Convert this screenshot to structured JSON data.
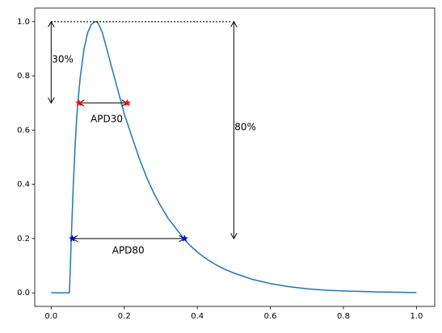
{
  "chart_data": {
    "type": "line",
    "title": "",
    "xlabel": "",
    "ylabel": "",
    "xlim": [
      -0.045,
      1.05
    ],
    "ylim": [
      -0.05,
      1.05
    ],
    "xticks": [
      0.0,
      0.2,
      0.4,
      0.6,
      0.8,
      1.0
    ],
    "xtick_labels": [
      "0.0",
      "0.2",
      "0.4",
      "0.6",
      "0.8",
      "1.0"
    ],
    "yticks": [
      0.0,
      0.2,
      0.4,
      0.6,
      0.8,
      1.0
    ],
    "ytick_labels": [
      "0.0",
      "0.2",
      "0.4",
      "0.6",
      "0.8",
      "1.0"
    ],
    "grid": false,
    "series": [
      {
        "color": "#1f77b4",
        "x": [
          0.0,
          0.05,
          0.055,
          0.06,
          0.065,
          0.07,
          0.075,
          0.08,
          0.09,
          0.1,
          0.11,
          0.12,
          0.125,
          0.13,
          0.14,
          0.15,
          0.16,
          0.17,
          0.18,
          0.19,
          0.2,
          0.21,
          0.22,
          0.24,
          0.26,
          0.28,
          0.3,
          0.32,
          0.34,
          0.36,
          0.38,
          0.4,
          0.42,
          0.44,
          0.46,
          0.48,
          0.5,
          0.55,
          0.6,
          0.65,
          0.7,
          0.75,
          0.8,
          0.85,
          0.9,
          0.95,
          1.0
        ],
        "y": [
          0.0,
          0.0,
          0.2,
          0.38,
          0.53,
          0.65,
          0.73,
          0.8,
          0.9,
          0.96,
          0.99,
          1.0,
          1.0,
          0.99,
          0.96,
          0.91,
          0.86,
          0.81,
          0.76,
          0.71,
          0.66,
          0.62,
          0.58,
          0.5,
          0.43,
          0.37,
          0.32,
          0.275,
          0.24,
          0.205,
          0.175,
          0.15,
          0.13,
          0.112,
          0.097,
          0.084,
          0.073,
          0.05,
          0.034,
          0.023,
          0.015,
          0.01,
          0.007,
          0.005,
          0.003,
          0.002,
          0.001
        ]
      }
    ],
    "dotted_line": {
      "x": [
        0.0,
        0.495
      ],
      "y": 1.0,
      "color": "#000000"
    },
    "vertical_arrows": [
      {
        "x": 0.0,
        "y_from": 1.0,
        "y_to": 0.7,
        "label": "30%",
        "label_x": 0.002,
        "label_y": 0.86
      },
      {
        "x": 0.5,
        "y_from": 1.0,
        "y_to": 0.2,
        "label": "80%",
        "label_x": 0.502,
        "label_y": 0.61
      }
    ],
    "horizontal_arrows": [
      {
        "y": 0.7,
        "x_from": 0.076,
        "x_to": 0.208,
        "label": "APD30",
        "label_x": 0.152,
        "label_y": 0.64
      },
      {
        "y": 0.2,
        "x_from": 0.058,
        "x_to": 0.365,
        "label": "APD80",
        "label_x": 0.211,
        "label_y": 0.155
      }
    ],
    "markers": [
      {
        "x": 0.076,
        "y": 0.7,
        "color": "#ff0000",
        "shape": "star"
      },
      {
        "x": 0.208,
        "y": 0.7,
        "color": "#ff0000",
        "shape": "star"
      },
      {
        "x": 0.058,
        "y": 0.2,
        "color": "#0000ff",
        "shape": "star"
      },
      {
        "x": 0.365,
        "y": 0.2,
        "color": "#0000ff",
        "shape": "star"
      }
    ]
  }
}
